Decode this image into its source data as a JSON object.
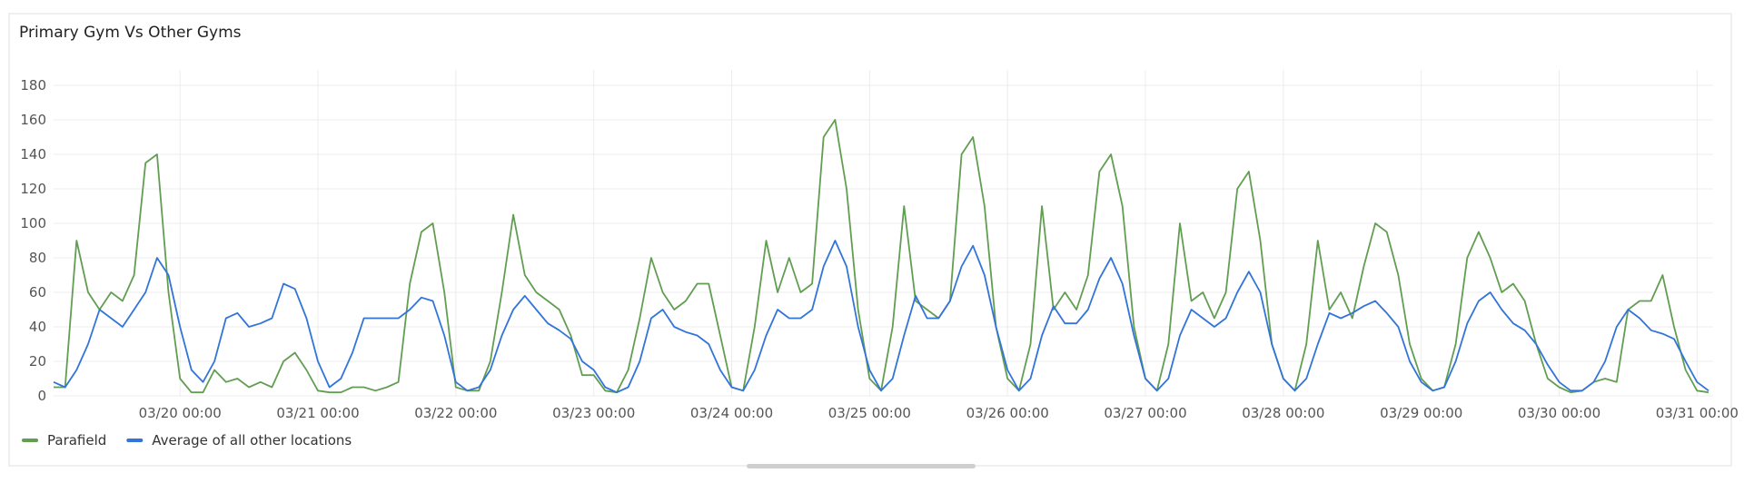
{
  "chart_data": {
    "type": "line",
    "title": "Primary Gym Vs Other Gyms",
    "x": [
      "03/19 02:00",
      "03/19 04:00",
      "03/19 06:00",
      "03/19 08:00",
      "03/19 10:00",
      "03/19 12:00",
      "03/19 14:00",
      "03/19 16:00",
      "03/19 18:00",
      "03/19 20:00",
      "03/19 22:00",
      "03/20 00:00",
      "03/20 02:00",
      "03/20 04:00",
      "03/20 06:00",
      "03/20 08:00",
      "03/20 10:00",
      "03/20 12:00",
      "03/20 14:00",
      "03/20 16:00",
      "03/20 18:00",
      "03/20 20:00",
      "03/20 22:00",
      "03/21 00:00",
      "03/21 02:00",
      "03/21 04:00",
      "03/21 06:00",
      "03/21 08:00",
      "03/21 10:00",
      "03/21 12:00",
      "03/21 14:00",
      "03/21 16:00",
      "03/21 18:00",
      "03/21 20:00",
      "03/21 22:00",
      "03/22 00:00",
      "03/22 02:00",
      "03/22 04:00",
      "03/22 06:00",
      "03/22 08:00",
      "03/22 10:00",
      "03/22 12:00",
      "03/22 14:00",
      "03/22 16:00",
      "03/22 18:00",
      "03/22 20:00",
      "03/22 22:00",
      "03/23 00:00",
      "03/23 02:00",
      "03/23 04:00",
      "03/23 06:00",
      "03/23 08:00",
      "03/23 10:00",
      "03/23 12:00",
      "03/23 14:00",
      "03/23 16:00",
      "03/23 18:00",
      "03/23 20:00",
      "03/23 22:00",
      "03/24 00:00",
      "03/24 02:00",
      "03/24 04:00",
      "03/24 06:00",
      "03/24 08:00",
      "03/24 10:00",
      "03/24 12:00",
      "03/24 14:00",
      "03/24 16:00",
      "03/24 18:00",
      "03/24 20:00",
      "03/24 22:00",
      "03/25 00:00",
      "03/25 02:00",
      "03/25 04:00",
      "03/25 06:00",
      "03/25 08:00",
      "03/25 10:00",
      "03/25 12:00",
      "03/25 14:00",
      "03/25 16:00",
      "03/25 18:00",
      "03/25 20:00",
      "03/25 22:00",
      "03/26 00:00",
      "03/26 02:00",
      "03/26 04:00",
      "03/26 06:00",
      "03/26 08:00",
      "03/26 10:00",
      "03/26 12:00",
      "03/26 14:00",
      "03/26 16:00",
      "03/26 18:00",
      "03/26 20:00",
      "03/26 22:00",
      "03/27 00:00",
      "03/27 02:00",
      "03/27 04:00",
      "03/27 06:00",
      "03/27 08:00",
      "03/27 10:00",
      "03/27 12:00",
      "03/27 14:00",
      "03/27 16:00",
      "03/27 18:00",
      "03/27 20:00",
      "03/27 22:00",
      "03/28 00:00",
      "03/28 02:00",
      "03/28 04:00",
      "03/28 06:00",
      "03/28 08:00",
      "03/28 10:00",
      "03/28 12:00",
      "03/28 14:00",
      "03/28 16:00",
      "03/28 18:00",
      "03/28 20:00",
      "03/28 22:00",
      "03/29 00:00",
      "03/29 02:00",
      "03/29 04:00",
      "03/29 06:00",
      "03/29 08:00",
      "03/29 10:00",
      "03/29 12:00",
      "03/29 14:00",
      "03/29 16:00",
      "03/29 18:00",
      "03/29 20:00",
      "03/29 22:00",
      "03/30 00:00",
      "03/30 02:00",
      "03/30 04:00",
      "03/30 06:00",
      "03/30 08:00",
      "03/30 10:00",
      "03/30 12:00",
      "03/30 14:00",
      "03/30 16:00",
      "03/30 18:00",
      "03/30 20:00",
      "03/30 22:00",
      "03/31 00:00",
      "03/31 02:00"
    ],
    "series": [
      {
        "name": "Parafield",
        "color": "#629e51",
        "values": [
          5,
          5,
          90,
          60,
          50,
          60,
          55,
          70,
          135,
          140,
          60,
          10,
          2,
          2,
          15,
          8,
          10,
          5,
          8,
          5,
          20,
          25,
          15,
          3,
          2,
          2,
          5,
          5,
          3,
          5,
          8,
          65,
          95,
          100,
          60,
          5,
          3,
          3,
          20,
          60,
          105,
          70,
          60,
          55,
          50,
          35,
          12,
          12,
          3,
          2,
          15,
          45,
          80,
          60,
          50,
          55,
          65,
          65,
          35,
          5,
          3,
          40,
          90,
          60,
          80,
          60,
          65,
          150,
          160,
          120,
          50,
          10,
          3,
          40,
          110,
          55,
          50,
          45,
          55,
          140,
          150,
          110,
          40,
          10,
          3,
          30,
          110,
          50,
          60,
          50,
          70,
          130,
          140,
          110,
          40,
          10,
          3,
          30,
          100,
          55,
          60,
          45,
          60,
          120,
          130,
          90,
          30,
          10,
          3,
          30,
          90,
          50,
          60,
          45,
          75,
          100,
          95,
          70,
          30,
          10,
          3,
          5,
          30,
          80,
          95,
          80,
          60,
          65,
          55,
          30,
          10,
          5,
          2,
          3,
          8,
          10,
          8,
          50,
          55,
          55,
          70,
          40,
          15,
          3,
          2
        ]
      },
      {
        "name": "Average of all other locations",
        "color": "#3274d9",
        "values": [
          8,
          5,
          15,
          30,
          50,
          45,
          40,
          50,
          60,
          80,
          70,
          40,
          15,
          8,
          20,
          45,
          48,
          40,
          42,
          45,
          65,
          62,
          45,
          20,
          5,
          10,
          25,
          45,
          45,
          45,
          45,
          50,
          57,
          55,
          35,
          8,
          3,
          5,
          15,
          35,
          50,
          58,
          50,
          42,
          38,
          33,
          20,
          15,
          5,
          2,
          5,
          20,
          45,
          50,
          40,
          37,
          35,
          30,
          15,
          5,
          3,
          15,
          35,
          50,
          45,
          45,
          50,
          75,
          90,
          75,
          40,
          15,
          3,
          10,
          35,
          58,
          45,
          45,
          55,
          75,
          87,
          70,
          40,
          15,
          3,
          10,
          35,
          52,
          42,
          42,
          50,
          68,
          80,
          65,
          35,
          10,
          3,
          10,
          35,
          50,
          45,
          40,
          45,
          60,
          72,
          60,
          30,
          10,
          3,
          10,
          30,
          48,
          45,
          48,
          52,
          55,
          48,
          40,
          20,
          8,
          3,
          5,
          20,
          42,
          55,
          60,
          50,
          42,
          38,
          30,
          18,
          8,
          3,
          3,
          8,
          20,
          40,
          50,
          45,
          38,
          36,
          33,
          20,
          8,
          3
        ]
      }
    ],
    "xlim": [
      "03/19 02:00",
      "03/31 02:00"
    ],
    "xticks": [
      "03/20 00:00",
      "03/21 00:00",
      "03/22 00:00",
      "03/23 00:00",
      "03/24 00:00",
      "03/25 00:00",
      "03/26 00:00",
      "03/27 00:00",
      "03/28 00:00",
      "03/29 00:00",
      "03/30 00:00",
      "03/31 00:00"
    ],
    "ylim": [
      0,
      180
    ],
    "yticks": [
      0,
      20,
      40,
      60,
      80,
      100,
      120,
      140,
      160,
      180
    ],
    "grid": true,
    "legend": "bottom-left"
  }
}
